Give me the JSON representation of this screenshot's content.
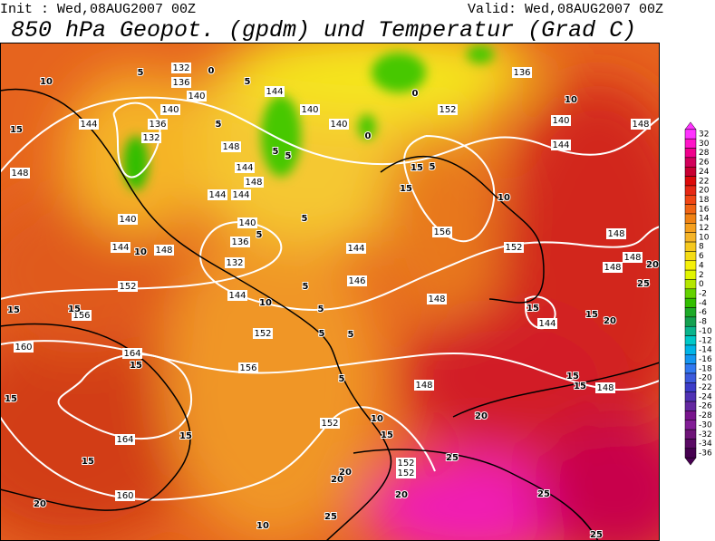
{
  "header": {
    "init": "Init : Wed,08AUG2007 00Z",
    "valid": "Valid: Wed,08AUG2007 00Z",
    "title": "850 hPa Geopot. (gpdm) und Temperatur (Grad C)"
  },
  "colorbar": {
    "ticks": [
      32,
      30,
      28,
      26,
      24,
      22,
      20,
      18,
      16,
      14,
      12,
      10,
      8,
      6,
      4,
      2,
      0,
      -2,
      -4,
      -6,
      -8,
      -10,
      -12,
      -14,
      -16,
      -18,
      -20,
      -22,
      -24,
      -26,
      -28,
      -30,
      -32,
      -34,
      -36
    ],
    "colors": [
      "#ff32ff",
      "#ff14c8",
      "#f0008c",
      "#d2005a",
      "#c80032",
      "#dc0a0a",
      "#e62814",
      "#f04614",
      "#f06414",
      "#f08214",
      "#f5a01e",
      "#f5b428",
      "#f5c81e",
      "#f5dc14",
      "#f5f00a",
      "#e1f500",
      "#b4e600",
      "#64d200",
      "#32be00",
      "#1eaa28",
      "#14a050",
      "#0ab48c",
      "#00c8c8",
      "#00b4e6",
      "#1496f0",
      "#3278f0",
      "#3c5adc",
      "#3c3cc8",
      "#5032b4",
      "#6428a0",
      "#78148c",
      "#821e96",
      "#6e1478",
      "#5a0a64",
      "#460050"
    ]
  },
  "map": {
    "geopotential_labels": [
      132,
      136,
      140,
      140,
      144,
      140,
      140,
      152,
      136,
      140,
      144,
      148,
      148,
      144,
      136,
      132,
      148,
      144,
      148,
      144,
      140,
      144,
      148,
      140,
      136,
      132,
      144,
      152,
      156,
      160,
      164,
      164,
      160,
      156,
      152,
      144,
      146,
      148,
      152,
      156,
      144,
      148,
      148,
      148,
      148,
      148,
      152,
      152,
      152,
      144
    ],
    "temperature_labels": [
      10,
      15,
      10,
      10,
      10,
      10,
      15,
      15,
      5,
      15,
      15,
      15,
      15,
      15,
      15,
      20,
      20,
      25,
      25,
      25,
      20,
      20,
      15,
      15,
      15,
      15,
      5,
      5,
      5,
      5,
      5,
      5,
      5,
      10,
      15,
      20,
      20,
      20,
      25,
      10,
      25,
      0,
      0,
      0,
      5,
      5,
      5,
      5,
      5
    ]
  }
}
